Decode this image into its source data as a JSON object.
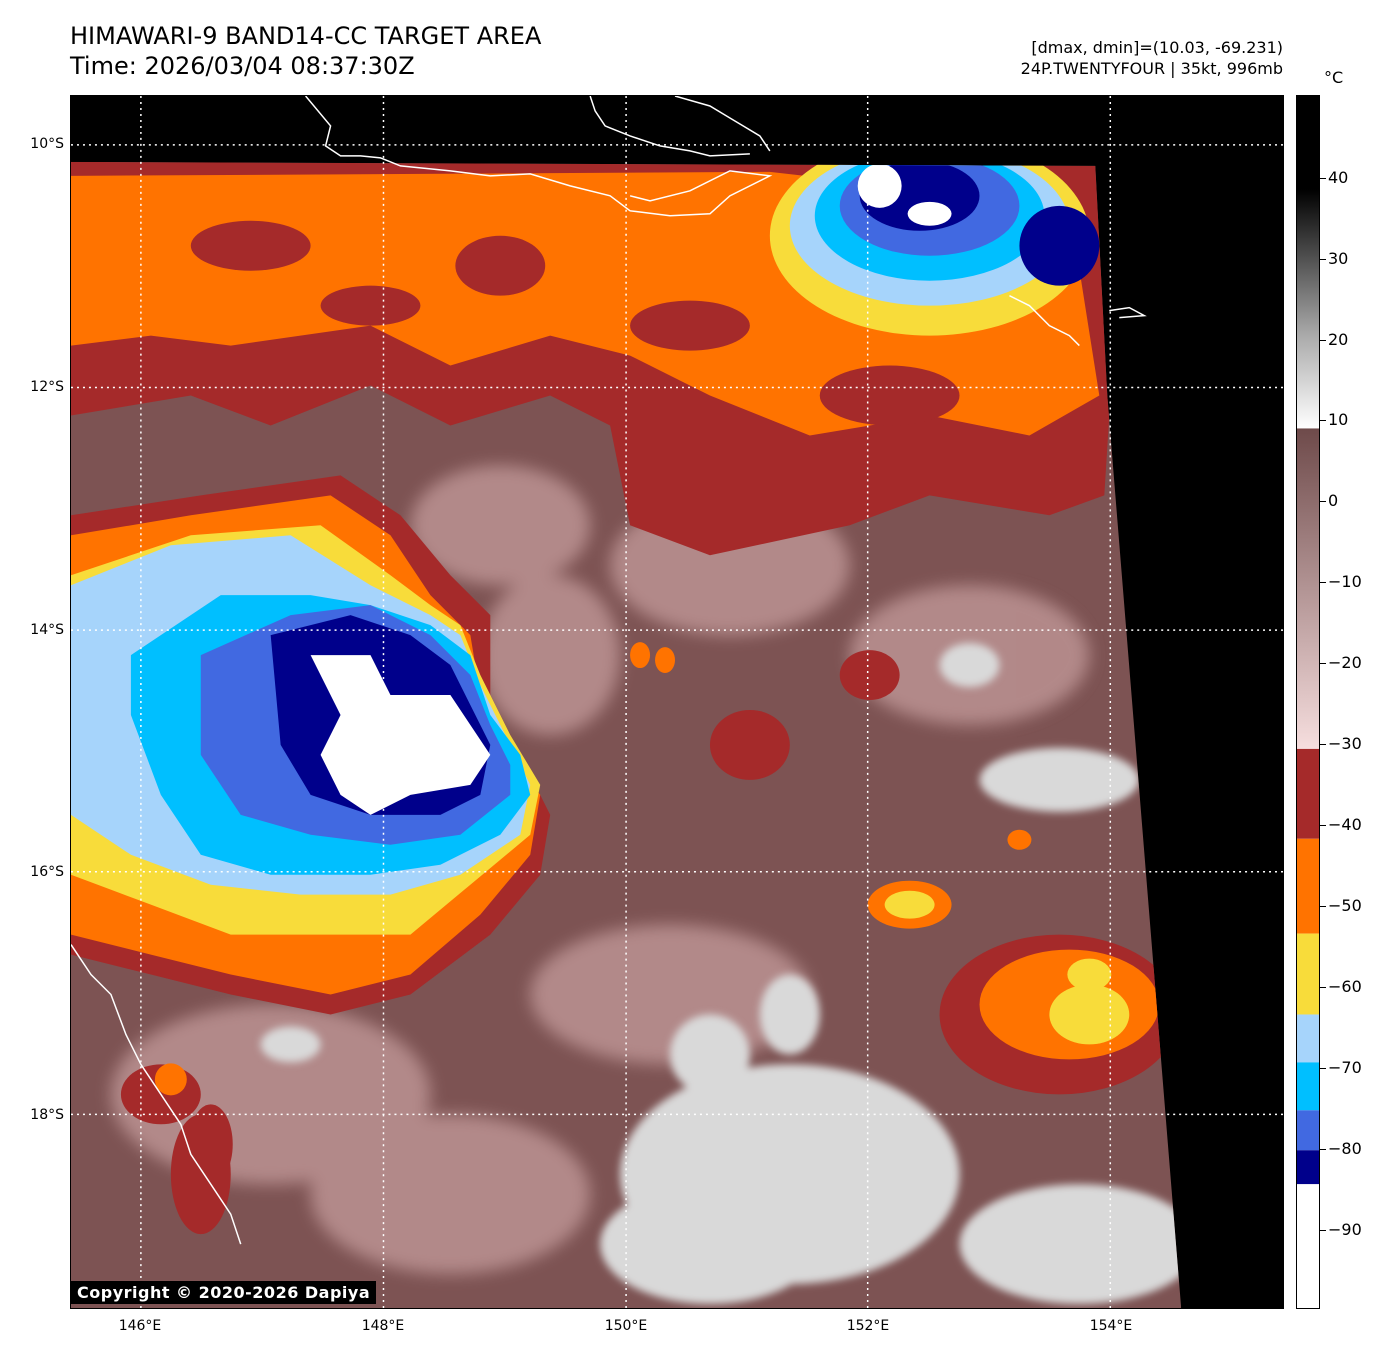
{
  "title": {
    "line1": "HIMAWARI-9 BAND14-CC TARGET AREA",
    "line2": "Time: 2026/03/04 08:37:30Z"
  },
  "info": {
    "line1": "[dmax, dmin]=(10.03, -69.231)",
    "line2": "24P.TWENTYFOUR | 35kt, 996mb"
  },
  "lat_labels": [
    "10°S",
    "12°S",
    "14°S",
    "16°S",
    "18°S"
  ],
  "lon_labels": [
    "146°E",
    "148°E",
    "150°E",
    "152°E",
    "154°E"
  ],
  "colorbar": {
    "unit": "°C",
    "ticks": [
      "40",
      "30",
      "20",
      "10",
      "0",
      "−10",
      "−20",
      "−30",
      "−40",
      "−50",
      "−60",
      "−70",
      "−80",
      "−90"
    ],
    "colors": {
      "white_cold": "#ffffff",
      "navy": "#00008b",
      "royal_blue": "#4169e1",
      "deep_sky": "#00bfff",
      "light_blue": "#a6d4fb",
      "gold": "#f8dc3a",
      "orange": "#ff7300",
      "brown_red": "#a52a2a",
      "pink": "#f4d8d8",
      "mauve": "#7d5353",
      "white_warm": "#ffffff",
      "black": "#000000"
    }
  },
  "copyright": "Copyright © 2020-2026 Dapiya"
}
